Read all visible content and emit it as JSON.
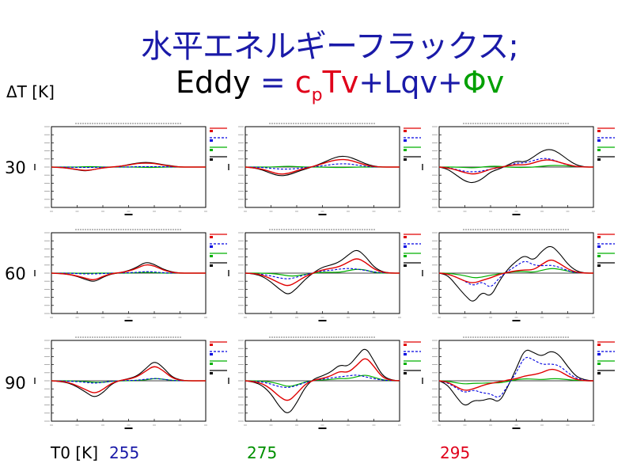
{
  "title": "水平エネルギーフラックス;",
  "equation": {
    "tokens": [
      {
        "text": "Eddy",
        "color": "#000000"
      },
      {
        "text": " = ",
        "color": "#1a1aa8"
      },
      {
        "text": "c",
        "color": "#e0001a"
      },
      {
        "text": "p",
        "color": "#e0001a",
        "sub": true
      },
      {
        "text": "Tv",
        "color": "#e0001a"
      },
      {
        "text": "+",
        "color": "#1a1aa8"
      },
      {
        "text": "Lqv",
        "color": "#1a1aa8"
      },
      {
        "text": "+",
        "color": "#1a1aa8"
      },
      {
        "text": "Φ",
        "color": "#00a000"
      },
      {
        "text": "v",
        "color": "#00a000"
      }
    ]
  },
  "row_axis_label": "ΔT [K]",
  "column_axis_label": "T0 [K]",
  "rows": [
    "30",
    "60",
    "90"
  ],
  "columns": [
    {
      "label": "255",
      "color": "#1a1aa8"
    },
    {
      "label": "275",
      "color": "#009000"
    },
    {
      "label": "295",
      "color": "#e0001a"
    }
  ],
  "colors": {
    "total": "#000000",
    "cpTv": "#e00000",
    "Lqv": "#0000e0",
    "phiv": "#00b000",
    "title": "#1a1aa8"
  },
  "chart_data": {
    "type": "line",
    "x": [
      -90,
      -80,
      -70,
      -60,
      -50,
      -40,
      -30,
      -20,
      -10,
      0,
      10,
      20,
      30,
      40,
      50,
      60,
      70,
      80,
      90
    ],
    "ylim": [
      -1,
      1
    ],
    "panels": [
      {
        "row": "30",
        "col": "255",
        "total": [
          0,
          -0.01,
          -0.03,
          -0.07,
          -0.1,
          -0.06,
          -0.02,
          0,
          0.02,
          0.06,
          0.1,
          0.12,
          0.1,
          0.06,
          0.03,
          0,
          0,
          0,
          0
        ],
        "cpTv": [
          0,
          -0.01,
          -0.03,
          -0.06,
          -0.09,
          -0.06,
          -0.02,
          0,
          0.02,
          0.05,
          0.09,
          0.1,
          0.09,
          0.05,
          0.02,
          0,
          0,
          0,
          0
        ],
        "Lqv": [
          0,
          0,
          0,
          -0.01,
          -0.01,
          -0.01,
          0,
          0,
          0,
          0,
          0.01,
          0.01,
          0.01,
          0.01,
          0,
          0,
          0,
          0,
          0
        ],
        "phiv": [
          0,
          0,
          0,
          0,
          0.01,
          0.01,
          0,
          0,
          0,
          0,
          0,
          -0.01,
          -0.01,
          0,
          0,
          0,
          0,
          0,
          0
        ]
      },
      {
        "row": "30",
        "col": "275",
        "total": [
          0,
          -0.02,
          -0.07,
          -0.16,
          -0.22,
          -0.2,
          -0.12,
          -0.05,
          0.02,
          0.1,
          0.2,
          0.27,
          0.26,
          0.18,
          0.08,
          0.02,
          0,
          0,
          0
        ],
        "cpTv": [
          0,
          -0.02,
          -0.05,
          -0.12,
          -0.18,
          -0.16,
          -0.09,
          -0.03,
          0.02,
          0.08,
          0.15,
          0.19,
          0.18,
          0.12,
          0.05,
          0.01,
          0,
          0,
          0
        ],
        "Lqv": [
          0,
          0,
          -0.01,
          -0.03,
          -0.05,
          -0.05,
          -0.04,
          -0.01,
          0.01,
          0.03,
          0.06,
          0.08,
          0.08,
          0.05,
          0.02,
          0,
          0,
          0,
          0
        ],
        "phiv": [
          0,
          0,
          0,
          0,
          0.01,
          0.02,
          0.01,
          0,
          0,
          0,
          -0.01,
          -0.01,
          -0.01,
          0,
          0,
          0,
          0,
          0,
          0
        ]
      },
      {
        "row": "30",
        "col": "295",
        "total": [
          0,
          -0.05,
          -0.2,
          -0.35,
          -0.4,
          -0.3,
          -0.12,
          -0.05,
          0.05,
          0.15,
          0.12,
          0.25,
          0.4,
          0.45,
          0.35,
          0.18,
          0.05,
          0,
          0
        ],
        "cpTv": [
          0,
          -0.02,
          -0.07,
          -0.14,
          -0.18,
          -0.13,
          -0.05,
          -0.01,
          0.03,
          0.06,
          0.05,
          0.1,
          0.17,
          0.18,
          0.12,
          0.06,
          0.01,
          0,
          0
        ],
        "Lqv": [
          0,
          -0.01,
          -0.06,
          -0.11,
          -0.12,
          -0.1,
          -0.05,
          -0.02,
          0.03,
          0.1,
          0.1,
          0.16,
          0.22,
          0.2,
          0.12,
          0.05,
          0.01,
          0,
          0
        ],
        "phiv": [
          0,
          0,
          0,
          -0.01,
          -0.02,
          0,
          0.02,
          0.02,
          0,
          -0.01,
          -0.01,
          0,
          0.02,
          0.04,
          0.04,
          0.03,
          0.01,
          0,
          0
        ]
      },
      {
        "row": "60",
        "col": "255",
        "total": [
          0,
          -0.01,
          -0.03,
          -0.08,
          -0.16,
          -0.22,
          -0.1,
          -0.02,
          0.01,
          0.06,
          0.15,
          0.28,
          0.22,
          0.1,
          0.03,
          0,
          0,
          0,
          0
        ],
        "cpTv": [
          0,
          -0.01,
          -0.03,
          -0.07,
          -0.13,
          -0.18,
          -0.08,
          -0.01,
          0.01,
          0.05,
          0.12,
          0.22,
          0.18,
          0.08,
          0.02,
          0,
          0,
          0,
          0
        ],
        "Lqv": [
          0,
          0,
          0,
          -0.01,
          -0.02,
          -0.02,
          -0.01,
          0,
          0,
          0.01,
          0.02,
          0.04,
          0.03,
          0.01,
          0,
          0,
          0,
          0,
          0
        ],
        "phiv": [
          0,
          0,
          0,
          0,
          -0.01,
          0,
          0,
          0,
          0,
          0,
          0.01,
          0.02,
          0.01,
          0,
          0,
          0,
          0,
          0,
          0
        ]
      },
      {
        "row": "60",
        "col": "275",
        "total": [
          0,
          -0.02,
          -0.08,
          -0.22,
          -0.4,
          -0.55,
          -0.38,
          -0.15,
          0.02,
          0.15,
          0.2,
          0.28,
          0.45,
          0.6,
          0.42,
          0.15,
          0.03,
          0,
          0
        ],
        "cpTv": [
          0,
          -0.01,
          -0.05,
          -0.14,
          -0.25,
          -0.33,
          -0.22,
          -0.08,
          0.01,
          0.08,
          0.12,
          0.16,
          0.27,
          0.38,
          0.27,
          0.1,
          0.02,
          0,
          0
        ],
        "Lqv": [
          0,
          -0.01,
          -0.03,
          -0.07,
          -0.12,
          -0.15,
          -0.1,
          -0.04,
          0.01,
          0.05,
          0.07,
          0.1,
          0.12,
          0.1,
          0.07,
          0.03,
          0.01,
          0,
          0
        ],
        "phiv": [
          0,
          0,
          0,
          -0.01,
          -0.03,
          -0.07,
          -0.07,
          -0.03,
          0,
          0.02,
          0.02,
          0.02,
          0.06,
          0.1,
          0.08,
          0.02,
          0,
          0,
          0
        ]
      },
      {
        "row": "60",
        "col": "295",
        "total": [
          0,
          -0.05,
          -0.3,
          -0.55,
          -0.75,
          -0.45,
          -0.6,
          -0.2,
          0.1,
          0.3,
          0.45,
          0.3,
          0.55,
          0.7,
          0.5,
          0.22,
          0.05,
          0,
          0
        ],
        "cpTv": [
          0,
          -0.02,
          -0.1,
          -0.2,
          -0.25,
          -0.18,
          -0.12,
          -0.03,
          0.02,
          0.06,
          0.08,
          0.08,
          0.22,
          0.35,
          0.25,
          0.1,
          0.02,
          0,
          0
        ],
        "Lqv": [
          0,
          -0.02,
          -0.1,
          -0.2,
          -0.32,
          -0.2,
          -0.38,
          -0.12,
          0.05,
          0.18,
          0.32,
          0.2,
          0.18,
          0.2,
          0.15,
          0.06,
          0.01,
          0,
          0
        ],
        "phiv": [
          0,
          0,
          -0.03,
          -0.06,
          -0.12,
          -0.1,
          -0.05,
          -0.02,
          0.02,
          0.04,
          0.04,
          0.02,
          0.07,
          0.12,
          0.1,
          0.05,
          0.01,
          0,
          0
        ]
      },
      {
        "row": "90",
        "col": "255",
        "total": [
          0,
          -0.02,
          -0.05,
          -0.15,
          -0.28,
          -0.42,
          -0.3,
          -0.08,
          0.01,
          0.05,
          0.12,
          0.3,
          0.5,
          0.34,
          0.1,
          0.02,
          0,
          0,
          0
        ],
        "cpTv": [
          0,
          -0.01,
          -0.04,
          -0.12,
          -0.22,
          -0.32,
          -0.22,
          -0.06,
          0.01,
          0.04,
          0.1,
          0.24,
          0.38,
          0.26,
          0.08,
          0.01,
          0,
          0,
          0
        ],
        "Lqv": [
          0,
          0,
          -0.01,
          -0.02,
          -0.04,
          -0.06,
          -0.04,
          -0.01,
          0,
          0.01,
          0.01,
          0.04,
          0.06,
          0.04,
          0.01,
          0,
          0,
          0,
          0
        ],
        "phiv": [
          0,
          0,
          0,
          -0.01,
          -0.02,
          -0.04,
          -0.04,
          -0.01,
          0,
          0,
          0.01,
          0.02,
          0.06,
          0.04,
          0.01,
          0,
          0,
          0,
          0
        ]
      },
      {
        "row": "90",
        "col": "275",
        "total": [
          0,
          -0.03,
          -0.12,
          -0.32,
          -0.65,
          -0.85,
          -0.55,
          -0.15,
          0.05,
          0.12,
          0.22,
          0.4,
          0.35,
          0.6,
          0.85,
          0.5,
          0.12,
          0.02,
          0
        ],
        "cpTv": [
          0,
          -0.02,
          -0.07,
          -0.2,
          -0.4,
          -0.52,
          -0.32,
          -0.08,
          0.02,
          0.06,
          0.12,
          0.24,
          0.2,
          0.38,
          0.6,
          0.36,
          0.08,
          0.01,
          0
        ],
        "Lqv": [
          0,
          -0.01,
          -0.03,
          -0.08,
          -0.15,
          -0.17,
          -0.12,
          -0.04,
          0.01,
          0.04,
          0.07,
          0.1,
          0.12,
          0.15,
          0.1,
          0.05,
          0.02,
          0,
          0
        ],
        "phiv": [
          0,
          0,
          -0.01,
          -0.03,
          -0.08,
          -0.15,
          -0.1,
          -0.03,
          0.01,
          0.02,
          0.03,
          0.06,
          0.05,
          0.1,
          0.15,
          0.09,
          0.02,
          0,
          0
        ]
      },
      {
        "row": "90",
        "col": "295",
        "total": [
          0,
          -0.1,
          -0.4,
          -0.65,
          -0.48,
          -0.5,
          -0.42,
          -0.55,
          -0.15,
          0.3,
          0.8,
          0.7,
          0.6,
          0.75,
          0.65,
          0.35,
          0.1,
          0.02,
          0
        ],
        "cpTv": [
          0,
          -0.03,
          -0.15,
          -0.25,
          -0.2,
          -0.12,
          -0.06,
          -0.03,
          0.02,
          0.05,
          0.12,
          0.15,
          0.2,
          0.3,
          0.25,
          0.12,
          0.03,
          0,
          0
        ],
        "Lqv": [
          0,
          -0.05,
          -0.18,
          -0.3,
          -0.22,
          -0.3,
          -0.32,
          -0.45,
          -0.12,
          0.2,
          0.62,
          0.52,
          0.4,
          0.42,
          0.38,
          0.2,
          0.06,
          0.01,
          0
        ],
        "phiv": [
          0,
          -0.01,
          -0.05,
          -0.08,
          -0.06,
          -0.06,
          -0.05,
          -0.05,
          -0.02,
          0.03,
          0.05,
          0.04,
          0.03,
          0.05,
          0.05,
          0.03,
          0.01,
          0,
          0
        ]
      }
    ]
  }
}
